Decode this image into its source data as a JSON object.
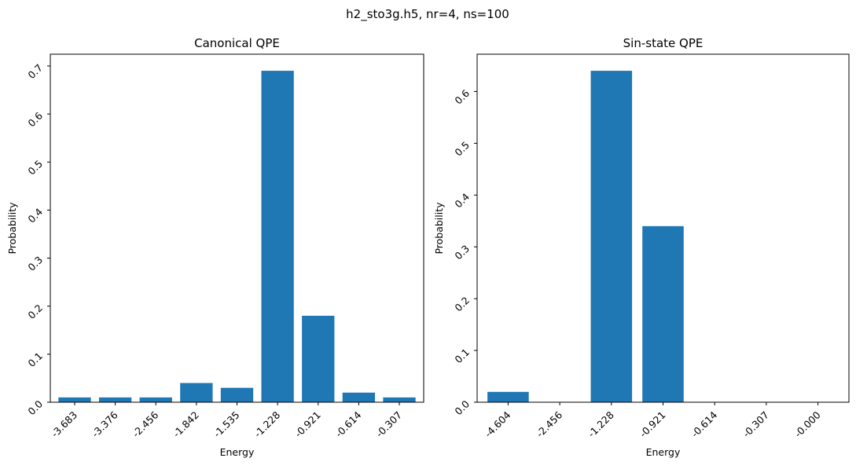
{
  "figure": {
    "suptitle": "h2_sto3g.h5, nr=4, ns=100",
    "bar_color": "#1f77b4"
  },
  "chart_data": [
    {
      "type": "bar",
      "title": "Canonical QPE",
      "xlabel": "Energy",
      "ylabel": "Probability",
      "categories": [
        "-3.683",
        "-3.376",
        "-2.456",
        "-1.842",
        "-1.535",
        "-1.228",
        "-0.921",
        "-0.614",
        "-0.307"
      ],
      "values": [
        0.01,
        0.01,
        0.01,
        0.04,
        0.03,
        0.69,
        0.18,
        0.02,
        0.01
      ],
      "ylim": [
        0,
        0.7245
      ],
      "yticks": [
        0.0,
        0.1,
        0.2,
        0.3,
        0.4,
        0.5,
        0.6,
        0.7
      ],
      "ytick_labels": [
        "0.0",
        "0.1",
        "0.2",
        "0.3",
        "0.4",
        "0.5",
        "0.6",
        "0.7"
      ],
      "grid": false,
      "legend": "none"
    },
    {
      "type": "bar",
      "title": "Sin-state QPE",
      "xlabel": "Energy",
      "ylabel": "Probability",
      "categories": [
        "-4.604",
        "-2.456",
        "-1.228",
        "-0.921",
        "-0.614",
        "-0.307",
        "-0.000"
      ],
      "values": [
        0.02,
        0.0,
        0.64,
        0.34,
        0.0,
        0.0,
        0.0
      ],
      "ylim": [
        0,
        0.672
      ],
      "yticks": [
        0.0,
        0.1,
        0.2,
        0.3,
        0.4,
        0.5,
        0.6
      ],
      "ytick_labels": [
        "0.0",
        "0.1",
        "0.2",
        "0.3",
        "0.4",
        "0.5",
        "0.6"
      ],
      "grid": false,
      "legend": "none"
    }
  ]
}
